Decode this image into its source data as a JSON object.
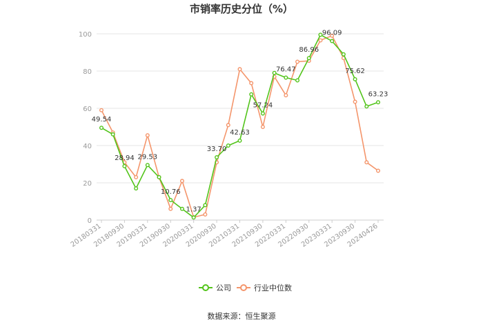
{
  "chart_data": {
    "type": "line",
    "title": "市销率历史分位（%）",
    "xlabel": "",
    "ylabel": "",
    "ylim": [
      0,
      100
    ],
    "yticks": [
      0,
      20,
      40,
      60,
      80,
      100
    ],
    "grid": true,
    "legend_position": "bottom",
    "x": [
      "20180331",
      "20180630",
      "20180930",
      "20181231",
      "20190331",
      "20190630",
      "20190930",
      "20191231",
      "20200331",
      "20200630",
      "20200930",
      "20201231",
      "20210331",
      "20210630",
      "20210930",
      "20211231",
      "20220331",
      "20220630",
      "20220930",
      "20221231",
      "20230331",
      "20230630",
      "20230930",
      "20231231",
      "20240426"
    ],
    "x_tick_labels": [
      "20180331",
      "20180930",
      "20190331",
      "20190930",
      "20200331",
      "20200930",
      "20210331",
      "20210930",
      "20220331",
      "20220930",
      "20230331",
      "20230930",
      "20240426"
    ],
    "x_tick_indices": [
      0,
      2,
      4,
      6,
      8,
      10,
      12,
      14,
      16,
      18,
      20,
      22,
      24
    ],
    "series": [
      {
        "name": "公司",
        "color": "#52c41a",
        "values": [
          49.54,
          46,
          28.94,
          17,
          29.53,
          23,
          10.76,
          6,
          1.37,
          8,
          33.7,
          40,
          42.63,
          67.5,
          57.24,
          79,
          76.47,
          75,
          86.96,
          99.5,
          96.09,
          89,
          75.62,
          61,
          63.23
        ],
        "labels": {
          "0": "49.54",
          "2": "28.94",
          "4": "29.53",
          "6": "10.76",
          "8": "1.37",
          "10": "33.70",
          "12": "42.63",
          "14": "57.24",
          "16": "76.47",
          "18": "86.96",
          "20": "96.09",
          "22": "75.62",
          "24": "63.23"
        }
      },
      {
        "name": "行业中位数",
        "color": "#f4956b",
        "values": [
          59,
          47,
          31,
          23,
          45.5,
          23,
          6,
          21,
          1.5,
          3,
          31,
          51,
          81,
          73.5,
          50,
          77,
          67,
          85,
          85.5,
          96.5,
          99,
          87,
          63.5,
          31,
          26.5
        ]
      }
    ]
  },
  "legend": {
    "items": [
      "公司",
      "行业中位数"
    ]
  },
  "source_text": "数据来源：恒生聚源"
}
